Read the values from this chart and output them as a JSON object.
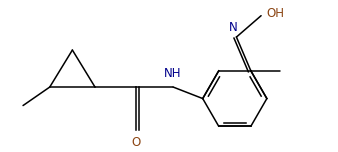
{
  "bg_color": "#ffffff",
  "line_color": "#000000",
  "atom_colors": {
    "O": "#8B4513",
    "N": "#00008B",
    "H": "#000000"
  },
  "figsize": [
    3.38,
    1.52
  ],
  "dpi": 100
}
